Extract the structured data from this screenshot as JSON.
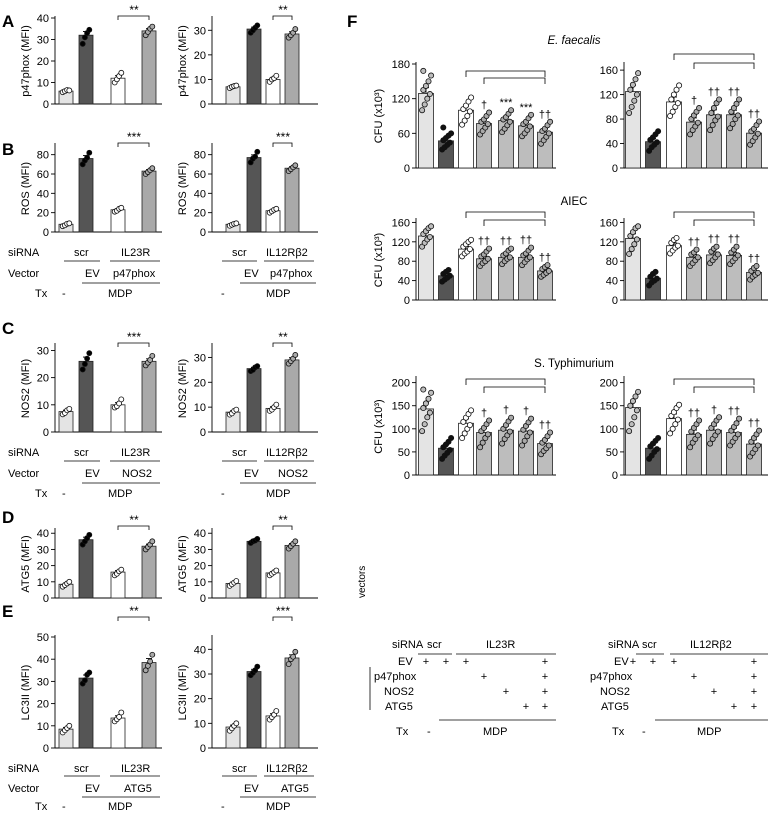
{
  "colors": {
    "light": "#e4e4e4",
    "white": "#ffffff",
    "dark": "#555555",
    "mid": "#a9a9a9",
    "mid2": "#bdbdbd",
    "stroke": "#222222"
  },
  "panels": [
    {
      "letter": "A",
      "label": "A"
    },
    {
      "letter": "B",
      "label": "B"
    },
    {
      "letter": "C",
      "label": "C"
    },
    {
      "letter": "D",
      "label": "D"
    },
    {
      "letter": "E",
      "label": "E"
    },
    {
      "letter": "F",
      "label": "F"
    }
  ],
  "left_axes": {
    "siRNA": "siRNA",
    "vector": "Vector",
    "tx": "Tx",
    "scr": "scr",
    "ev": "EV",
    "mdp": "MDP",
    "minus": "-",
    "il23r": "IL23R",
    "il12rb2": "IL12Rβ2",
    "p47phox": "p47phox",
    "nos2": "NOS2",
    "atg5": "ATG5"
  },
  "chart_data": [
    {
      "id": "A1",
      "type": "bar",
      "ylabel": "p47phox (MFI)",
      "ylim": [
        0,
        40
      ],
      "yticks": [
        0,
        10,
        20,
        30,
        40
      ],
      "values": [
        6,
        32,
        12,
        34
      ],
      "sig": "**",
      "sig_label": "**",
      "points": [
        [
          5.5,
          6,
          6.5,
          6.3
        ],
        [
          28,
          31,
          33,
          34.5
        ],
        [
          10,
          11.5,
          13,
          14.5
        ],
        [
          32,
          33.5,
          35,
          36
        ]
      ]
    },
    {
      "id": "A2",
      "type": "bar",
      "ylabel": "p47phox (MFI)",
      "ylim": [
        0,
        35
      ],
      "yticks": [
        0,
        10,
        20,
        30
      ],
      "values": [
        7,
        30.5,
        10,
        28.5
      ],
      "sig": "**",
      "sig_label": "**",
      "points": [
        [
          6.5,
          7,
          7.3,
          7.5
        ],
        [
          29,
          30,
          31,
          32
        ],
        [
          9,
          10,
          10.5,
          11.5
        ],
        [
          27,
          28,
          29,
          30.5
        ]
      ]
    },
    {
      "id": "B1",
      "type": "bar",
      "ylabel": "ROS (MFI)",
      "ylim": [
        0,
        90
      ],
      "yticks": [
        0,
        20,
        40,
        60,
        80
      ],
      "values": [
        8,
        76,
        23,
        63
      ],
      "sig": "***",
      "sig_label": "***",
      "points": [
        [
          6,
          7,
          8.5,
          9
        ],
        [
          70,
          74,
          77,
          82
        ],
        [
          21,
          22,
          24,
          25
        ],
        [
          60,
          62,
          64,
          66
        ]
      ]
    },
    {
      "id": "B2",
      "type": "bar",
      "ylabel": "ROS (MFI)",
      "ylim": [
        0,
        90
      ],
      "yticks": [
        0,
        20,
        40,
        60,
        80
      ],
      "values": [
        8,
        77,
        22,
        66
      ],
      "sig": "***",
      "sig_label": "***",
      "points": [
        [
          6.5,
          7.5,
          8.5,
          9
        ],
        [
          72,
          76,
          78,
          83
        ],
        [
          20,
          21.5,
          23,
          24
        ],
        [
          63,
          65,
          67,
          69
        ]
      ]
    },
    {
      "id": "C1",
      "type": "bar",
      "ylabel": "NOS2 (MFI)",
      "ylim": [
        0,
        32
      ],
      "yticks": [
        0,
        10,
        20,
        30
      ],
      "values": [
        7.5,
        26,
        10,
        26
      ],
      "sig": "***",
      "sig_label": "***",
      "points": [
        [
          6.5,
          7,
          8,
          8.5
        ],
        [
          23,
          25,
          27,
          29
        ],
        [
          9,
          9.5,
          10.5,
          12
        ],
        [
          24.5,
          25.5,
          26.5,
          28
        ]
      ]
    },
    {
      "id": "C2",
      "type": "bar",
      "ylabel": "NOS2 (MFI)",
      "ylim": [
        0,
        35
      ],
      "yticks": [
        0,
        10,
        20,
        30
      ],
      "values": [
        8,
        25.5,
        9.5,
        29
      ],
      "sig": "**",
      "sig_label": "**",
      "points": [
        [
          7,
          7.5,
          8.5,
          9
        ],
        [
          24.5,
          25,
          26,
          26.5
        ],
        [
          8.5,
          9,
          10,
          11
        ],
        [
          27.5,
          28.5,
          29.5,
          31
        ]
      ]
    },
    {
      "id": "D1",
      "type": "bar",
      "ylabel": "ATG5 (MFI)",
      "ylim": [
        0,
        42
      ],
      "yticks": [
        0,
        10,
        20,
        30,
        40
      ],
      "values": [
        8.5,
        36,
        16,
        32
      ],
      "sig": "**",
      "sig_label": "**",
      "points": [
        [
          7,
          8,
          9,
          10
        ],
        [
          33,
          35,
          37,
          39
        ],
        [
          14,
          15,
          16.5,
          17.5
        ],
        [
          30,
          31.5,
          33,
          35
        ]
      ]
    },
    {
      "id": "D2",
      "type": "bar",
      "ylabel": "ATG5 (MFI)",
      "ylim": [
        0,
        42
      ],
      "yticks": [
        0,
        10,
        20,
        30,
        40
      ],
      "values": [
        9,
        35,
        15.5,
        32.5
      ],
      "sig": "**",
      "sig_label": "**",
      "points": [
        [
          7.5,
          8.5,
          9.5,
          10.5
        ],
        [
          34,
          35,
          35.5,
          36.5
        ],
        [
          14,
          15,
          16,
          17
        ],
        [
          30.5,
          32,
          33.5,
          35
        ]
      ]
    },
    {
      "id": "E1",
      "type": "bar",
      "ylabel": "LC3II (MFI)",
      "ylim": [
        0,
        50
      ],
      "yticks": [
        0,
        10,
        20,
        30,
        40,
        50
      ],
      "values": [
        8.5,
        31.5,
        13.5,
        38.5
      ],
      "sig": "**",
      "sig_label": "**",
      "points": [
        [
          7,
          8,
          9,
          10
        ],
        [
          29,
          30.5,
          33,
          34
        ],
        [
          12,
          13,
          14,
          16
        ],
        [
          35,
          37,
          39,
          42
        ]
      ]
    },
    {
      "id": "E2",
      "type": "bar",
      "ylabel": "LC3II (MFI)",
      "ylim": [
        0,
        45
      ],
      "yticks": [
        0,
        10,
        20,
        30,
        40
      ],
      "values": [
        8.5,
        31,
        13,
        36.5
      ],
      "sig": "***",
      "sig_label": "***",
      "points": [
        [
          7,
          8,
          9,
          10
        ],
        [
          29.5,
          30.5,
          31.5,
          33
        ],
        [
          11.5,
          12.5,
          13.5,
          15
        ],
        [
          34,
          36,
          37,
          39
        ]
      ]
    },
    {
      "id": "F1",
      "type": "bar",
      "ylabel": "CFU (x10³)",
      "ylim": [
        0,
        180
      ],
      "yticks": [
        0,
        60,
        120,
        180
      ],
      "values": [
        129,
        47,
        100,
        77,
        82,
        73,
        62
      ],
      "marks": [
        "",
        "",
        "",
        "†",
        "***",
        "***",
        "††"
      ],
      "points": [
        [
          100,
          110,
          120,
          128,
          135,
          142,
          150,
          160,
          168
        ],
        [
          32,
          36,
          40,
          44,
          48,
          52,
          56,
          60,
          70
        ],
        [
          75,
          82,
          90,
          98,
          102,
          108,
          115,
          122
        ],
        [
          58,
          64,
          70,
          76,
          80,
          84,
          90,
          96
        ],
        [
          62,
          68,
          74,
          80,
          84,
          88,
          94,
          100
        ],
        [
          55,
          60,
          66,
          72,
          76,
          80,
          86,
          92
        ],
        [
          42,
          48,
          54,
          60,
          64,
          68,
          74,
          80
        ]
      ]
    },
    {
      "id": "F2",
      "type": "bar",
      "ylabel": "",
      "ylim": [
        0,
        170
      ],
      "yticks": [
        0,
        40,
        80,
        120,
        160
      ],
      "values": [
        125,
        43,
        108,
        75,
        87,
        87,
        57
      ],
      "marks": [
        "",
        "",
        "",
        "†",
        "††",
        "††",
        "††"
      ],
      "points": [
        [
          90,
          100,
          110,
          120,
          128,
          136,
          145,
          155
        ],
        [
          28,
          34,
          38,
          42,
          46,
          50,
          55,
          60
        ],
        [
          85,
          92,
          100,
          106,
          112,
          120,
          128,
          135
        ],
        [
          55,
          62,
          68,
          74,
          80,
          86,
          92,
          98
        ],
        [
          62,
          70,
          78,
          84,
          90,
          98,
          106,
          112
        ],
        [
          65,
          72,
          80,
          86,
          92,
          98,
          105,
          112
        ],
        [
          38,
          44,
          50,
          56,
          60,
          64,
          70,
          76
        ]
      ]
    },
    {
      "id": "F3",
      "type": "bar",
      "ylabel": "CFU (x10³)",
      "ylim": [
        0,
        165
      ],
      "yticks": [
        0,
        40,
        80,
        120,
        160
      ],
      "values": [
        132,
        50,
        105,
        85,
        88,
        88,
        60
      ],
      "marks": [
        "",
        "",
        "",
        "††",
        "††",
        "††",
        "††"
      ],
      "points": [
        [
          110,
          118,
          125,
          130,
          136,
          142,
          148,
          152
        ],
        [
          38,
          42,
          46,
          50,
          54,
          58,
          62
        ],
        [
          90,
          96,
          100,
          105,
          110,
          115,
          120,
          124
        ],
        [
          70,
          76,
          80,
          85,
          90,
          94,
          100,
          106
        ],
        [
          74,
          80,
          85,
          88,
          92,
          96,
          102,
          106
        ],
        [
          72,
          78,
          84,
          88,
          92,
          96,
          102,
          108
        ],
        [
          48,
          52,
          56,
          60,
          64,
          68,
          72
        ]
      ]
    },
    {
      "id": "F4",
      "type": "bar",
      "ylabel": "",
      "ylim": [
        0,
        165
      ],
      "yticks": [
        0,
        40,
        80,
        120,
        160
      ],
      "values": [
        127,
        45,
        112,
        88,
        93,
        92,
        57
      ],
      "marks": [
        "",
        "",
        "",
        "††",
        "††",
        "††",
        "††"
      ],
      "points": [
        [
          95,
          105,
          115,
          125,
          132,
          140,
          148,
          152
        ],
        [
          30,
          36,
          40,
          44,
          48,
          54,
          58
        ],
        [
          96,
          102,
          108,
          112,
          118,
          124,
          128
        ],
        [
          70,
          76,
          82,
          88,
          94,
          98,
          104
        ],
        [
          76,
          82,
          88,
          94,
          100,
          106,
          110
        ],
        [
          74,
          80,
          86,
          92,
          98,
          104,
          110
        ],
        [
          42,
          48,
          52,
          56,
          60,
          66,
          70
        ]
      ]
    },
    {
      "id": "F5",
      "type": "bar",
      "ylabel": "CFU (x10³)",
      "ylim": [
        0,
        210
      ],
      "yticks": [
        0,
        50,
        100,
        150,
        200
      ],
      "values": [
        143,
        58,
        112,
        92,
        97,
        95,
        68
      ],
      "marks": [
        "",
        "",
        "",
        "†",
        "†",
        "†",
        "††"
      ],
      "points": [
        [
          95,
          110,
          125,
          135,
          145,
          155,
          165,
          178,
          185
        ],
        [
          35,
          42,
          48,
          54,
          60,
          66,
          72,
          80
        ],
        [
          80,
          90,
          100,
          108,
          115,
          124,
          132,
          140
        ],
        [
          60,
          70,
          80,
          88,
          95,
          102,
          110,
          118
        ],
        [
          68,
          78,
          86,
          94,
          100,
          108,
          116,
          124
        ],
        [
          64,
          74,
          84,
          92,
          98,
          106,
          114,
          122
        ],
        [
          45,
          52,
          58,
          64,
          70,
          76,
          84,
          92
        ]
      ]
    },
    {
      "id": "F6",
      "type": "bar",
      "ylabel": "",
      "ylim": [
        0,
        210
      ],
      "yticks": [
        0,
        50,
        100,
        150,
        200
      ],
      "values": [
        146,
        58,
        122,
        88,
        97,
        92,
        67
      ],
      "marks": [
        "",
        "",
        "",
        "††",
        "†",
        "††",
        "††"
      ],
      "points": [
        [
          95,
          110,
          125,
          140,
          150,
          160,
          170,
          180
        ],
        [
          35,
          42,
          50,
          56,
          62,
          68,
          74,
          80
        ],
        [
          90,
          100,
          110,
          120,
          128,
          136,
          145,
          152
        ],
        [
          60,
          70,
          78,
          86,
          94,
          102,
          110,
          118
        ],
        [
          68,
          78,
          86,
          94,
          102,
          110,
          118,
          125
        ],
        [
          64,
          72,
          80,
          88,
          96,
          104,
          112,
          122
        ],
        [
          40,
          48,
          56,
          64,
          72,
          80,
          88,
          96
        ]
      ]
    }
  ],
  "organisms": {
    "ef": "E. faecalis",
    "aiec": "AIEC",
    "st": "S. Typhimurium"
  },
  "f_table": {
    "siRNA": "siRNA",
    "scr": "scr",
    "il23r": "IL23R",
    "il12rb2": "IL12Rβ2",
    "vectors": "vectors",
    "ev": "EV",
    "p47phox": "p47phox",
    "nos2": "NOS2",
    "atg5": "ATG5",
    "plus": "+",
    "tx": "Tx",
    "minus": "-",
    "mdp": "MDP"
  }
}
